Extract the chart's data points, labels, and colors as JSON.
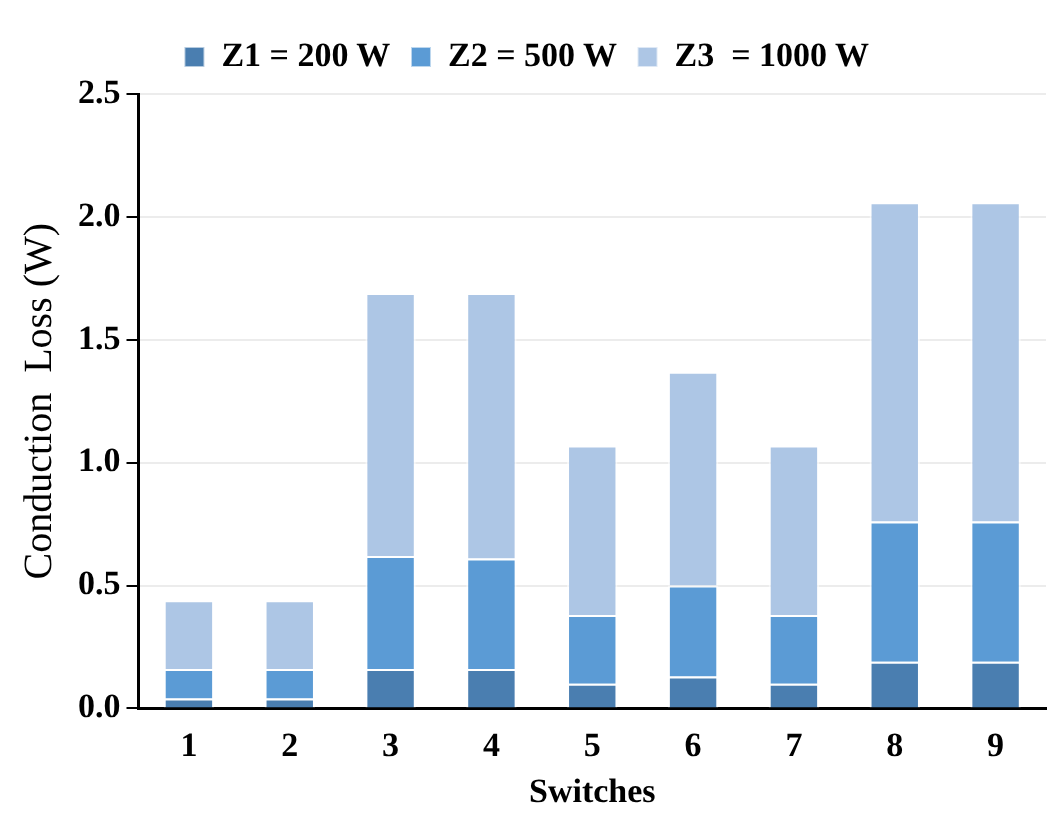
{
  "chart_data": {
    "type": "bar",
    "stacked": true,
    "xlabel": "Switches",
    "ylabel": "Conduction  Loss (W)",
    "categories": [
      "1",
      "2",
      "3",
      "4",
      "5",
      "6",
      "7",
      "8",
      "9"
    ],
    "series": [
      {
        "name": "Z1 = 200 W",
        "color": "#4a7eb0",
        "values": [
          0.04,
          0.04,
          0.16,
          0.16,
          0.1,
          0.13,
          0.1,
          0.19,
          0.19
        ]
      },
      {
        "name": "Z2 = 500 W",
        "color": "#5b9bd5",
        "values": [
          0.12,
          0.12,
          0.46,
          0.45,
          0.28,
          0.37,
          0.28,
          0.57,
          0.57
        ]
      },
      {
        "name": "Z3  = 1000 W",
        "color": "#adc6e5",
        "values": [
          0.28,
          0.28,
          1.07,
          1.08,
          0.69,
          0.87,
          0.69,
          1.3,
          1.3
        ]
      }
    ],
    "ylim": [
      0,
      2.5
    ],
    "yticks": [
      {
        "value": 0,
        "label": "0.0"
      },
      {
        "value": 0.5,
        "label": "0.5"
      },
      {
        "value": 1,
        "label": "1.0"
      },
      {
        "value": 1.5,
        "label": "1.5"
      },
      {
        "value": 2,
        "label": "2.0"
      },
      {
        "value": 2.5,
        "label": "2.5"
      }
    ],
    "grid": "y",
    "legend": "top"
  }
}
